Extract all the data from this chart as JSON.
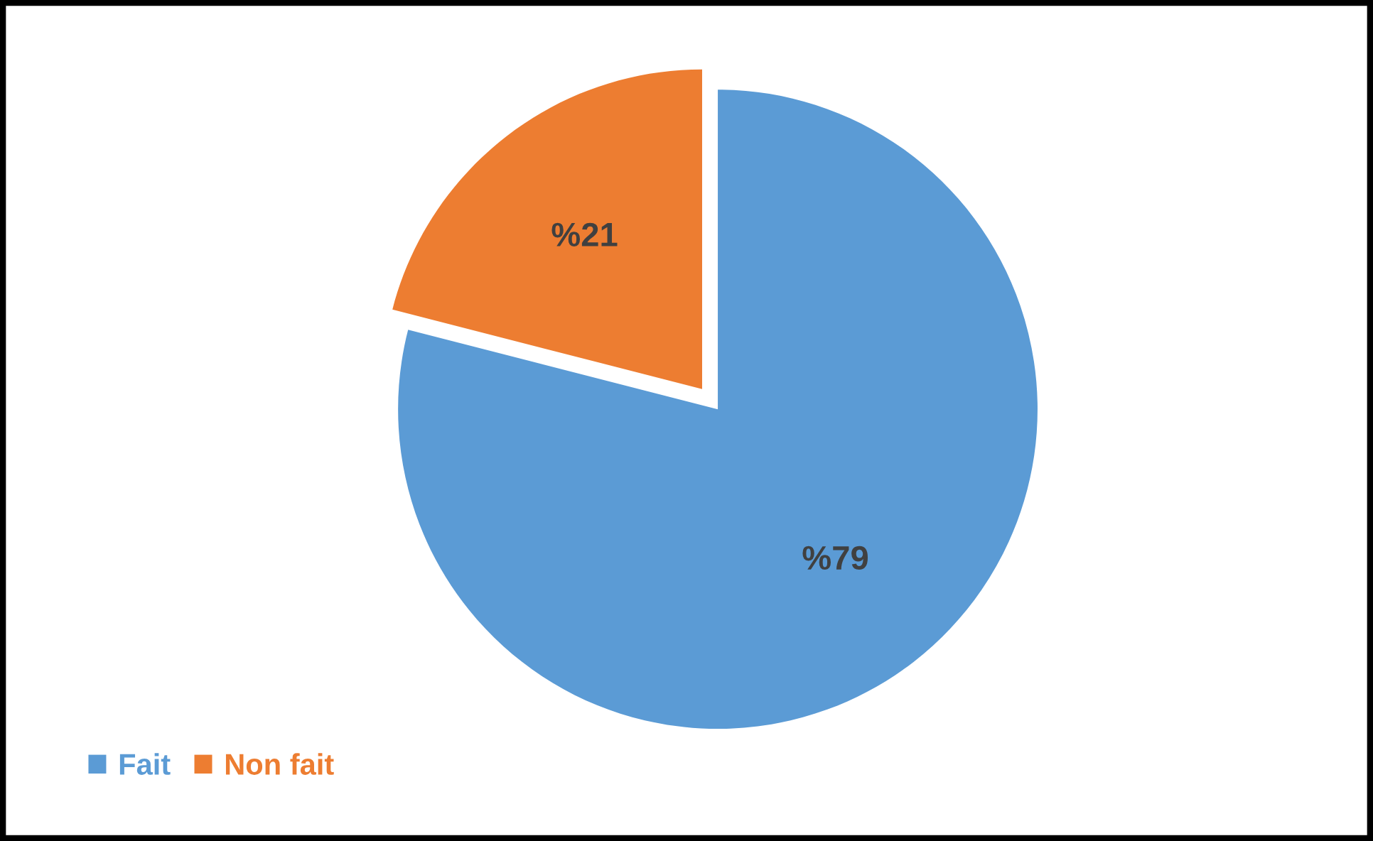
{
  "chart_data": {
    "type": "pie",
    "categories": [
      "Fait",
      "Non fait"
    ],
    "values": [
      79,
      21
    ],
    "colors": [
      "#5b9bd5",
      "#ed7d31"
    ],
    "value_labels": [
      "%79",
      "%21"
    ],
    "legend": "bottom left"
  }
}
